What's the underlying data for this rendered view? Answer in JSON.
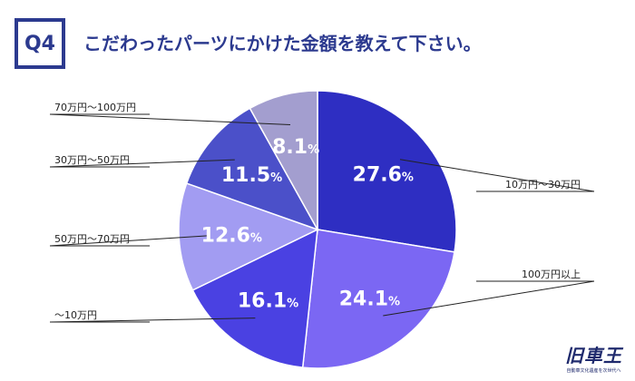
{
  "header": {
    "badge": "Q4",
    "title": "こだわったパーツにかけた金額を教えて下さい。"
  },
  "brand": {
    "name": "旧車王",
    "tagline": "自動車文化遺産を次世代へ"
  },
  "colors": {
    "accent": "#2c3a8f"
  },
  "chart_data": {
    "type": "pie",
    "title": "",
    "start_angle_deg": 0,
    "direction": "clockwise",
    "slices": [
      {
        "label": "10万円～30万円",
        "value": 27.6,
        "display": "27.6",
        "color": "#2e2ec2"
      },
      {
        "label": "100万円以上",
        "value": 24.1,
        "display": "24.1",
        "color": "#7b67f3"
      },
      {
        "label": "～10万円",
        "value": 16.1,
        "display": "16.1",
        "color": "#4a41e2"
      },
      {
        "label": "50万円～70万円",
        "value": 12.6,
        "display": "12.6",
        "color": "#a29cf2"
      },
      {
        "label": "30万円～50万円",
        "value": 11.5,
        "display": "11.5",
        "color": "#4b50c9"
      },
      {
        "label": "70万円～100万円",
        "value": 8.1,
        "display": "8.1",
        "color": "#a39ecf"
      }
    ],
    "unit": "%"
  }
}
